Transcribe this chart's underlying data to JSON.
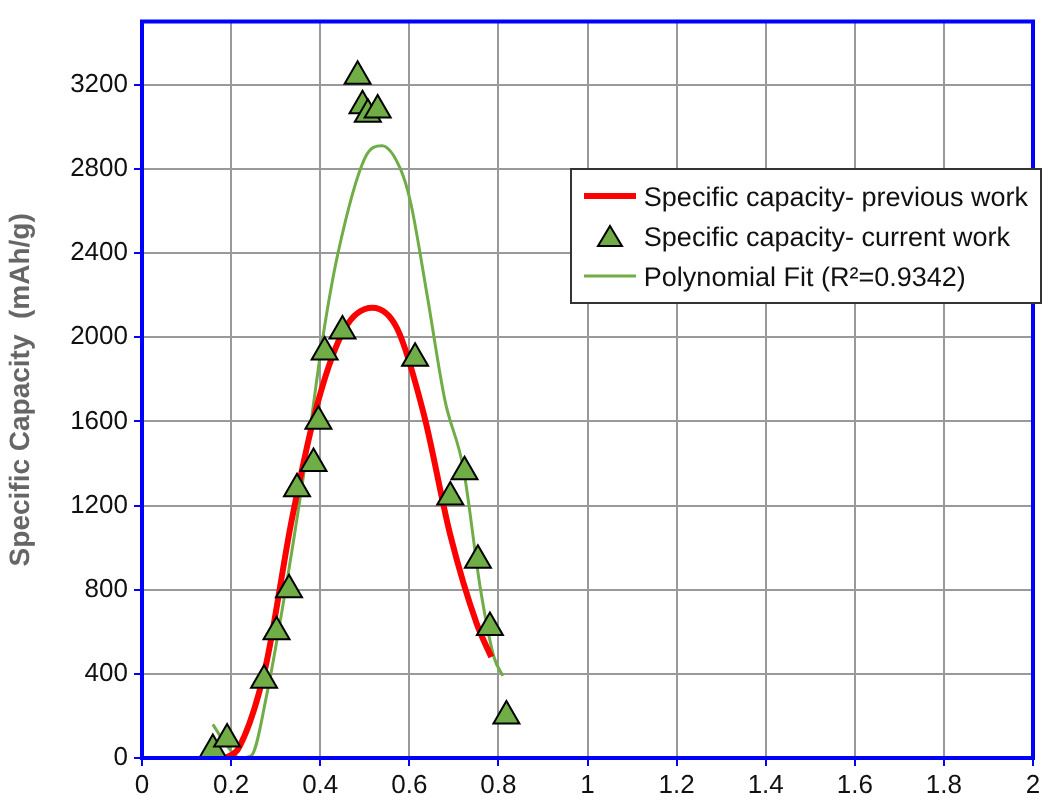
{
  "chart_data": {
    "type": "scatter",
    "ylabel": "Specific Capacity  (mAh/g)",
    "xlim": [
      0,
      2
    ],
    "xticks": [
      0,
      0.2,
      0.4,
      0.6,
      0.8,
      1,
      1.2,
      1.4,
      1.6,
      1.8,
      2
    ],
    "ylim": [
      0,
      3500
    ],
    "yticks": [
      0,
      400,
      800,
      1200,
      1600,
      2000,
      2400,
      2800,
      3200
    ],
    "grid": true,
    "legend": "top right",
    "series": [
      {
        "name": "Specific capacity- previous work",
        "type": "line",
        "color": "#ff0000",
        "marker": "none",
        "x": [
          0.188,
          0.218,
          0.277,
          0.336,
          0.396,
          0.455,
          0.517,
          0.573,
          0.633,
          0.692,
          0.751,
          0.784
        ],
        "values": [
          0,
          50,
          430,
          1130,
          1700,
          2040,
          2140,
          2040,
          1630,
          1060,
          640,
          480
        ]
      },
      {
        "name": "Specific capacity- current work",
        "type": "scatter",
        "color": "#70ad47",
        "marker": "triangle",
        "x": [
          0.159,
          0.191,
          0.274,
          0.302,
          0.33,
          0.348,
          0.385,
          0.396,
          0.41,
          0.45,
          0.484,
          0.495,
          0.507,
          0.529,
          0.613,
          0.692,
          0.724,
          0.754,
          0.781,
          0.818
        ],
        "values": [
          40,
          90,
          370,
          600,
          800,
          1280,
          1400,
          1600,
          1930,
          2030,
          3240,
          3100,
          3060,
          3080,
          1900,
          1240,
          1360,
          940,
          620,
          200
        ]
      },
      {
        "name": "Polynomial Fit (R²=0.9342)",
        "type": "line",
        "color": "#70ad47",
        "marker": "none",
        "x": [
          0.159,
          0.19,
          0.22,
          0.245,
          0.28,
          0.33,
          0.37,
          0.406,
          0.44,
          0.5,
          0.539,
          0.58,
          0.603,
          0.64,
          0.68,
          0.721,
          0.76,
          0.79,
          0.81
        ],
        "values": [
          160,
          60,
          0,
          10,
          300,
          900,
          1450,
          2000,
          2400,
          2850,
          2910,
          2800,
          2640,
          2200,
          1700,
          1380,
          800,
          480,
          390
        ]
      }
    ]
  }
}
